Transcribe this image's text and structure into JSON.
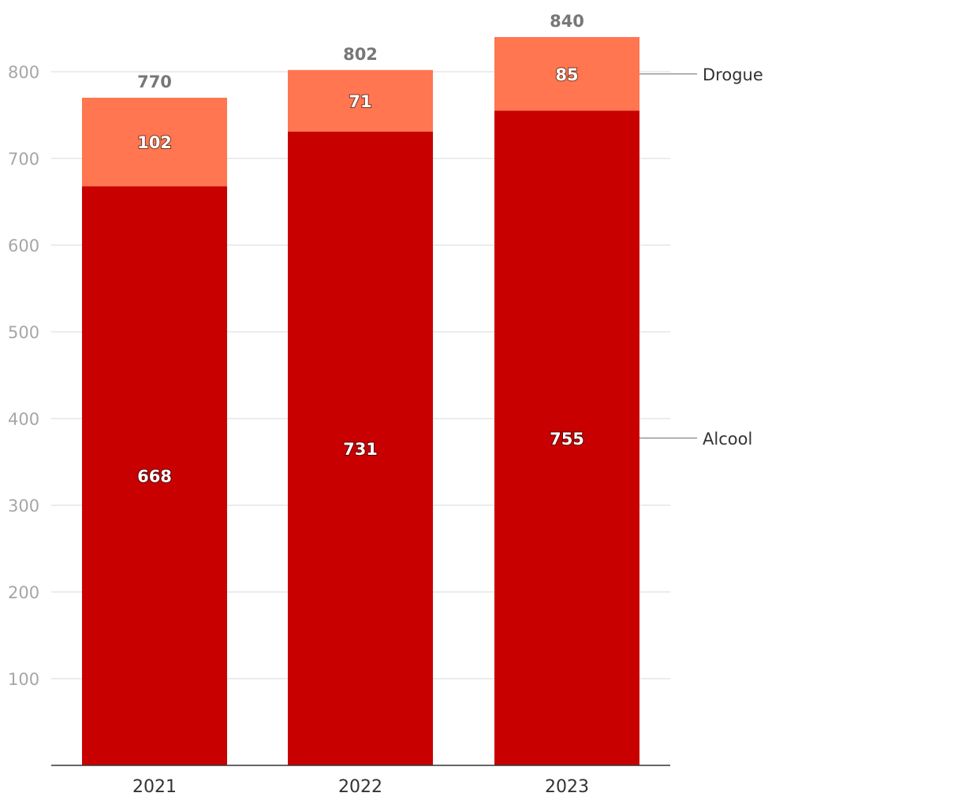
{
  "chart_data": {
    "type": "bar",
    "stacked": true,
    "categories": [
      "2021",
      "2022",
      "2023"
    ],
    "series": [
      {
        "name": "Alcool",
        "values": [
          668,
          731,
          755
        ],
        "color": "#c90000"
      },
      {
        "name": "Drogue",
        "values": [
          102,
          71,
          85
        ],
        "color": "#ff7650"
      }
    ],
    "totals": [
      770,
      802,
      840
    ],
    "yticks": [
      100,
      200,
      300,
      400,
      500,
      600,
      700,
      800
    ],
    "ylim": [
      0,
      880
    ],
    "grid": true,
    "legend": "right, inline labels",
    "colors": {
      "grid": "#e5e5e5",
      "axis": "#333333",
      "leader": "#999999"
    }
  }
}
